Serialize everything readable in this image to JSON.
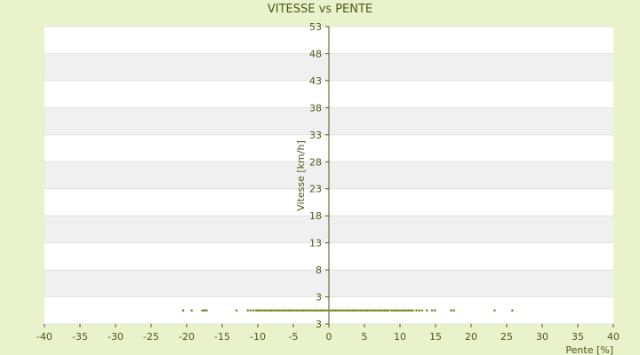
{
  "chart_data": {
    "type": "scatter",
    "title": "VITESSE vs PENTE",
    "xlabel": "Pente [%]",
    "ylabel": "Vitesse [km/h]",
    "xlim": [
      -40,
      40
    ],
    "ylim": [
      3,
      53
    ],
    "x_ticks": [
      -40,
      -35,
      -30,
      -25,
      -20,
      -15,
      -10,
      -5,
      0,
      5,
      10,
      15,
      20,
      25,
      30,
      35,
      40
    ],
    "y_tick_labels": [
      "3",
      "3",
      "8",
      "13",
      "18",
      "23",
      "28",
      "33",
      "38",
      "43",
      "48",
      "53"
    ],
    "grid": "horizontal",
    "legend": "none",
    "colors": {
      "background": "#eaf2cc",
      "plot_band_light": "#ffffff",
      "plot_band_dark": "#f0f0f0",
      "axis": "#4a5a1a",
      "point": "#6f8a1f"
    },
    "series": [
      {
        "y_value": 0.5,
        "x": [
          -20.5,
          -19.3,
          -17.8,
          -17.5,
          -17.2,
          -13.0,
          -11.4,
          -11.0,
          -10.6,
          -10.2,
          -9.9,
          -9.6,
          -9.3,
          -9.0,
          -8.7,
          -8.4,
          -8.1,
          -7.8,
          -7.5,
          -7.2,
          -6.9,
          -6.6,
          -6.3,
          -6.0,
          -5.7,
          -5.4,
          -5.1,
          -4.8,
          -4.5,
          -4.2,
          -3.9,
          -3.6,
          -3.3,
          -3.0,
          -2.7,
          -2.4,
          -2.1,
          -1.8,
          -1.5,
          -1.2,
          -0.9,
          -0.6,
          -0.3,
          0.0,
          0.3,
          0.6,
          0.9,
          1.2,
          1.5,
          1.8,
          2.1,
          2.4,
          2.7,
          3.0,
          3.3,
          3.6,
          3.9,
          4.2,
          4.5,
          4.8,
          5.1,
          5.4,
          5.7,
          6.0,
          6.3,
          6.6,
          6.9,
          7.2,
          7.5,
          7.8,
          8.1,
          8.4,
          8.8,
          9.1,
          9.4,
          9.7,
          10.0,
          10.3,
          10.6,
          10.9,
          11.2,
          11.5,
          11.8,
          12.3,
          12.7,
          13.1,
          13.8,
          14.5,
          14.9,
          17.2,
          17.6,
          23.3,
          25.8
        ]
      }
    ]
  }
}
